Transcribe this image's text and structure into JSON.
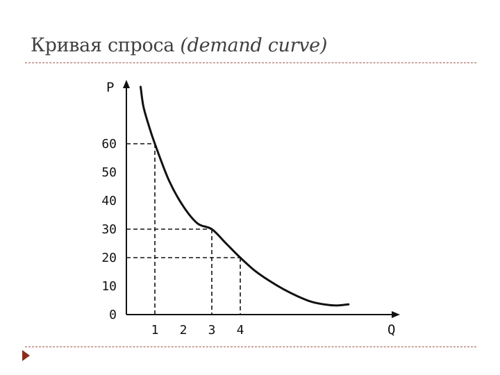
{
  "slide": {
    "title_main": "Кривая спроса ",
    "title_em": "(demand curve)"
  },
  "colors": {
    "rule": "#a0564a",
    "bullet": "#8b2d1c",
    "ink": "#111111"
  },
  "chart_data": {
    "type": "line",
    "title": "",
    "xlabel": "Q",
    "ylabel": "P",
    "xlim": [
      0,
      9
    ],
    "ylim": [
      0,
      72
    ],
    "xticks": [
      "1",
      "2",
      "3",
      "4"
    ],
    "xtick_values": [
      1,
      2,
      3,
      4
    ],
    "yticks": [
      "0",
      "10",
      "20",
      "30",
      "40",
      "50",
      "60"
    ],
    "ytick_values": [
      0,
      10,
      20,
      30,
      40,
      50,
      60
    ],
    "grid": false,
    "series": [
      {
        "x": [
          0.5,
          0.6,
          0.8,
          1,
          1.5,
          2,
          2.5,
          3,
          3.5,
          4,
          4.5,
          5,
          5.5,
          6,
          6.5,
          7,
          7.4,
          7.8
        ],
        "y": [
          80,
          73,
          66,
          60,
          47,
          38,
          32,
          30,
          25,
          20,
          15.5,
          12,
          9,
          6.5,
          4.5,
          3.5,
          3.2,
          3.6
        ]
      }
    ],
    "guides": [
      {
        "x": 1,
        "y": 60
      },
      {
        "x": 3,
        "y": 30
      },
      {
        "x": 4,
        "y": 20
      }
    ]
  }
}
